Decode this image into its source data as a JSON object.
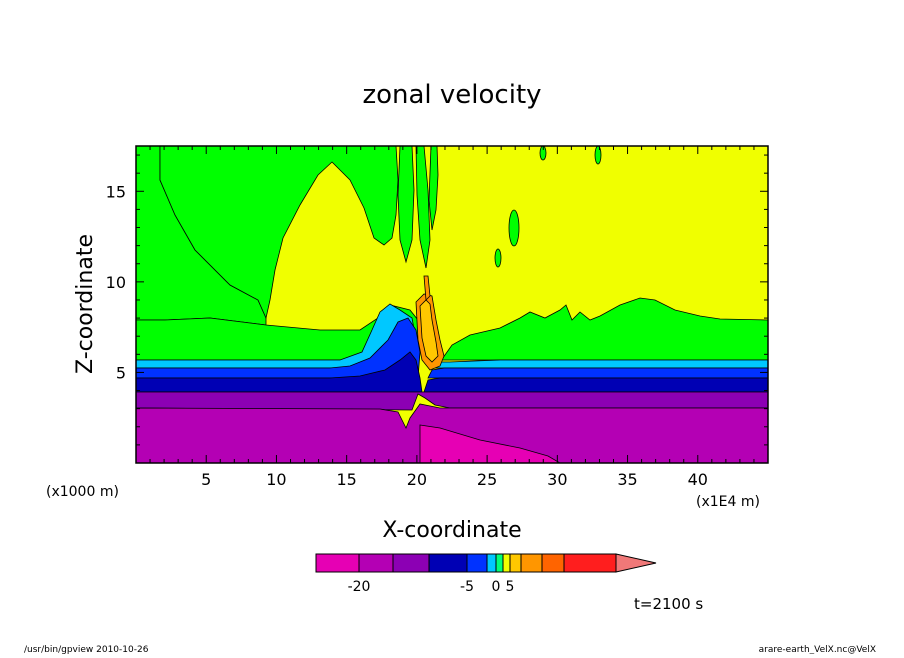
{
  "chart_data": {
    "type": "heatmap",
    "title": "zonal velocity",
    "xlabel": "X-coordinate",
    "ylabel": "Z-coordinate",
    "x_unit": "(x1E4 m)",
    "y_unit": "(x1000 m)",
    "xlim": [
      0,
      45
    ],
    "ylim": [
      0,
      17.5
    ],
    "x_ticks": [
      5,
      10,
      15,
      20,
      25,
      30,
      35,
      40
    ],
    "y_ticks": [
      5,
      10,
      15
    ],
    "colorbar": {
      "colors": [
        "#e600b4",
        "#b400b4",
        "#8c00b4",
        "#0000b4",
        "#0032ff",
        "#00c8ff",
        "#00ff78",
        "#f0ff00",
        "#ffc800",
        "#ff9600",
        "#ff6400",
        "#ff1e1e",
        "#f07878"
      ],
      "tick_labels": [
        "-20",
        "-5",
        "0",
        "5"
      ],
      "tick_values": [
        -20,
        -5,
        0,
        5
      ]
    },
    "layers": [
      {
        "name": "u1",
        "color": "#b400b4",
        "ytop": 3.0
      },
      {
        "name": "u2",
        "color": "#8c00b4",
        "ytop": 3.9
      },
      {
        "name": "u3",
        "color": "#0000b4",
        "ytop": 4.6
      },
      {
        "name": "u4",
        "color": "#0032ff",
        "ytop": 5.3
      },
      {
        "name": "u5",
        "color": "#00c8ff",
        "ytop": 5.75
      },
      {
        "name": "u6",
        "color": "#00ff00",
        "ytop": 8.0
      },
      {
        "name": "u7",
        "color": "#f0ff00",
        "ytop": 17.5
      }
    ],
    "time_label": "t=2100 s"
  },
  "footer": {
    "left": "/usr/bin/gpview   2010-10-26",
    "right": "arare-earth_VelX.nc@VelX"
  }
}
